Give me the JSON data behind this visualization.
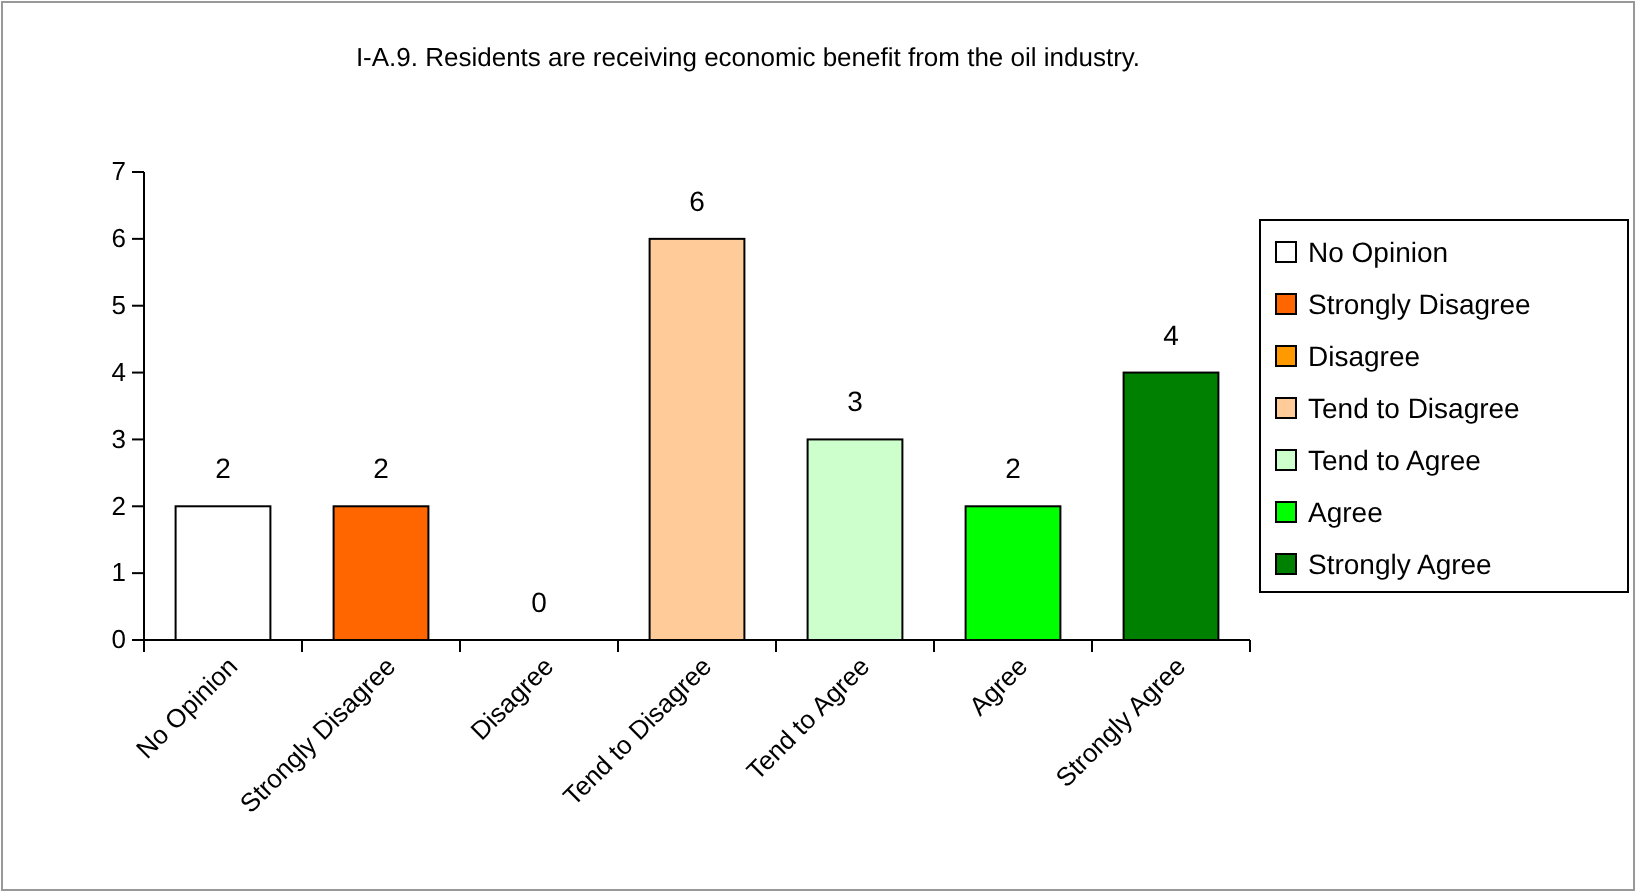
{
  "chart_data": {
    "type": "bar",
    "title": "I-A.9.  Residents are receiving economic benefit from the oil industry.",
    "categories": [
      "No Opinion",
      "Strongly Disagree",
      "Disagree",
      "Tend to Disagree",
      "Tend to Agree",
      "Agree",
      "Strongly Agree"
    ],
    "stacked": true,
    "series": [
      {
        "name": "No Opinion",
        "color": "#ffffff",
        "values": [
          2,
          null,
          null,
          null,
          null,
          null,
          null
        ]
      },
      {
        "name": "Strongly Disagree",
        "color": "#ff6600",
        "values": [
          null,
          2,
          null,
          null,
          null,
          null,
          null
        ]
      },
      {
        "name": "Disagree",
        "color": "#ff9900",
        "values": [
          null,
          null,
          0,
          null,
          null,
          null,
          null
        ]
      },
      {
        "name": "Tend to Disagree",
        "color": "#ffcc99",
        "values": [
          null,
          null,
          null,
          6,
          null,
          null,
          null
        ]
      },
      {
        "name": "Tend to Agree",
        "color": "#ccffcc",
        "values": [
          null,
          null,
          null,
          null,
          3,
          null,
          null
        ]
      },
      {
        "name": "Agree",
        "color": "#00ff00",
        "values": [
          null,
          null,
          null,
          null,
          null,
          2,
          null
        ]
      },
      {
        "name": "Strongly Agree",
        "color": "#008000",
        "values": [
          null,
          null,
          null,
          null,
          null,
          null,
          4
        ]
      }
    ],
    "ylim": [
      0,
      7
    ],
    "yticks": [
      0,
      1,
      2,
      3,
      4,
      5,
      6,
      7
    ],
    "legend": "right",
    "data_labels": true
  }
}
